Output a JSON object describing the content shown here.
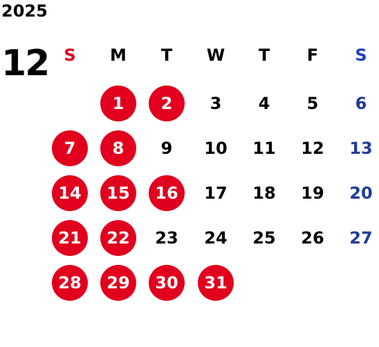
{
  "year": "2025",
  "month": "12",
  "weekdays": [
    {
      "label": "S",
      "color": "#e1001e"
    },
    {
      "label": "M",
      "color": "#000000"
    },
    {
      "label": "T",
      "color": "#000000"
    },
    {
      "label": "W",
      "color": "#000000"
    },
    {
      "label": "T",
      "color": "#000000"
    },
    {
      "label": "F",
      "color": "#000000"
    },
    {
      "label": "S",
      "color": "#1f3dcc"
    }
  ],
  "colors": {
    "holiday_circle": "#e1001e",
    "saturday_text": "#1f3d99",
    "default_text": "#000000"
  },
  "start_weekday": 1,
  "days": [
    "1",
    "2",
    "3",
    "4",
    "5",
    "6",
    "7",
    "8",
    "9",
    "10",
    "11",
    "12",
    "13",
    "14",
    "15",
    "16",
    "17",
    "18",
    "19",
    "20",
    "21",
    "22",
    "23",
    "24",
    "25",
    "26",
    "27",
    "28",
    "29",
    "30",
    "31"
  ],
  "highlighted_days": [
    "1",
    "2",
    "7",
    "8",
    "14",
    "15",
    "16",
    "21",
    "22",
    "28",
    "29",
    "30",
    "31"
  ]
}
